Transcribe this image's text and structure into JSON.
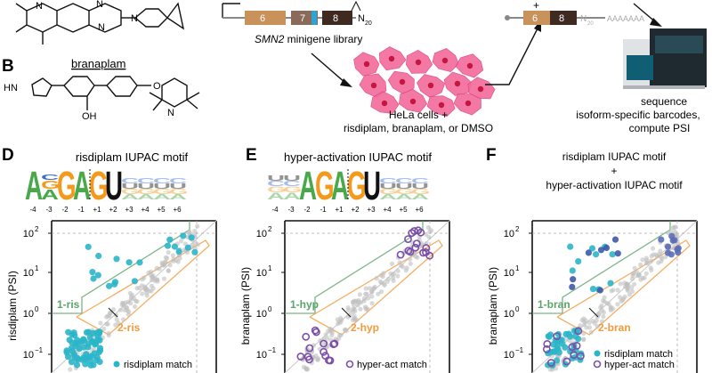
{
  "panel_labels": {
    "b": "B",
    "d": "D",
    "e": "E",
    "f": "F"
  },
  "molecules": {
    "branaplam_title": "branaplam",
    "n_label": "N"
  },
  "library": {
    "exon6": "6",
    "exon7": "7",
    "exon8": "8",
    "n20": "N",
    "n20_sub": "20",
    "label_italic": "SMN2",
    "label_rest": " minigene library"
  },
  "cells": {
    "line1": "HeLa cells +",
    "line2": "risdiplam, branaplam, or DMSO"
  },
  "product": {
    "exon6": "6",
    "exon8": "8",
    "plus": "+",
    "polya": "AAAAAAA",
    "n20": "N",
    "n20_sub": "20"
  },
  "sequence": {
    "line1": "sequence",
    "line2": "isoform-specific barcodes,",
    "line3": "compute PSI"
  },
  "panel_d": {
    "title": "risdiplam IUPAC motif",
    "logo_letters": [
      "A",
      "G",
      "G",
      "A",
      "G",
      "U",
      "A",
      "A",
      "A",
      "A",
      "A"
    ],
    "positions": [
      "-4",
      "-3",
      "-2",
      "-1",
      "+1",
      "+2",
      "+3",
      "+4",
      "+5",
      "+6"
    ],
    "ylabel": "risdiplam (PSI)",
    "ticks": [
      "10",
      "10",
      "10",
      "10"
    ],
    "tick_exps": [
      "2",
      "1",
      "0",
      "−1"
    ],
    "region1": "1-ris",
    "region2": "2-ris",
    "legend": "risdiplam match"
  },
  "panel_e": {
    "title": "hyper-activation IUPAC motif",
    "positions": [
      "-4",
      "-3",
      "-2",
      "-1",
      "+1",
      "+2",
      "+3",
      "+4",
      "+5",
      "+6"
    ],
    "ylabel": "branaplam (PSI)",
    "ticks": [
      "10",
      "10",
      "10",
      "10"
    ],
    "tick_exps": [
      "2",
      "1",
      "0",
      "−1"
    ],
    "region1": "1-hyp",
    "region2": "2-hyp",
    "legend": "hyper-act match"
  },
  "panel_f": {
    "title_line1": "risdiplam IUPAC motif",
    "title_line2": "+",
    "title_line3": "hyper-activation IUPAC motif",
    "ylabel": "branaplam (PSI)",
    "ticks": [
      "10",
      "10",
      "10",
      "10"
    ],
    "tick_exps": [
      "2",
      "1",
      "0",
      "−1"
    ],
    "region1": "1-bran",
    "region2": "2-bran",
    "legend1": "risdiplam match",
    "legend2": "hyper-act match"
  },
  "colors": {
    "teal": "#2bb5c9",
    "purple": "#7b4fa8",
    "orange": "#f39a3c",
    "green": "#5aa36b",
    "pink": "#f26b9b",
    "exon6": "#c8925a",
    "exon7": "#8a6a58",
    "exon8": "#3f2a22",
    "blue": "#2fa3d6"
  }
}
